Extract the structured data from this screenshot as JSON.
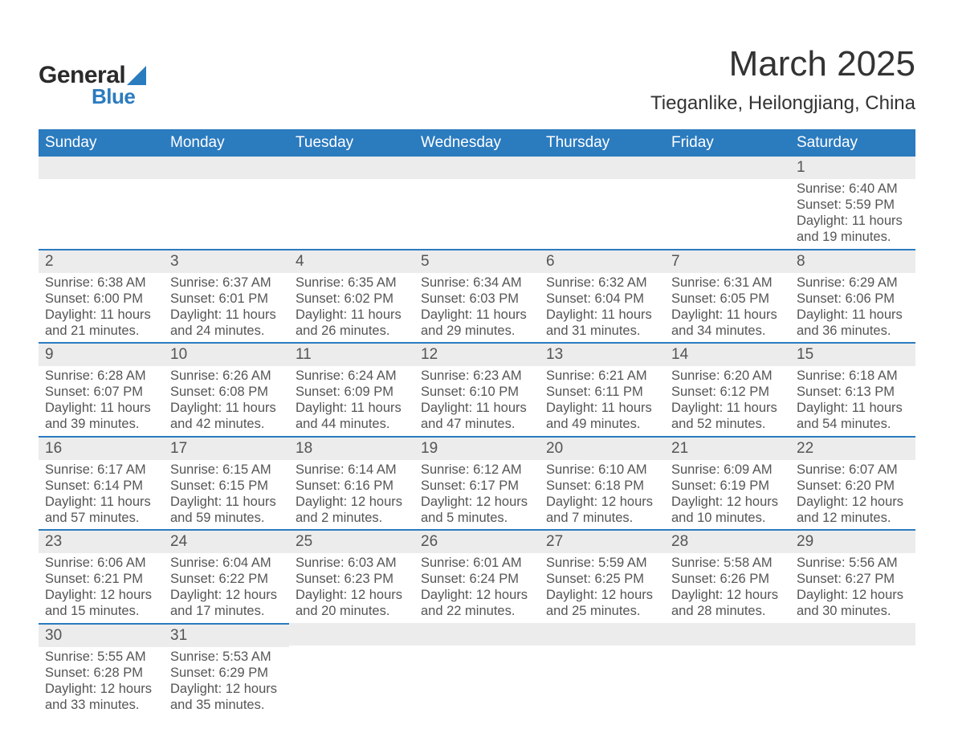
{
  "brand": {
    "general": "General",
    "blue": "Blue",
    "sail_color": "#2b7bbf"
  },
  "title": "March 2025",
  "location": "Tieganlike, Heilongjiang, China",
  "colors": {
    "header_bg": "#2b7bbf",
    "header_text": "#ffffff",
    "daybar_bg": "#ececec",
    "daybar_border": "#2b7bbf",
    "text": "#555555",
    "title_text": "#333333",
    "page_bg": "#ffffff"
  },
  "typography": {
    "title_fontsize": 44,
    "location_fontsize": 24,
    "dayheader_fontsize": 19,
    "daynum_fontsize": 19,
    "body_fontsize": 16.5
  },
  "day_headers": [
    "Sunday",
    "Monday",
    "Tuesday",
    "Wednesday",
    "Thursday",
    "Friday",
    "Saturday"
  ],
  "labels": {
    "sunrise": "Sunrise:",
    "sunset": "Sunset:",
    "daylight": "Daylight:"
  },
  "weeks": [
    [
      null,
      null,
      null,
      null,
      null,
      null,
      {
        "d": "1",
        "sr": "6:40 AM",
        "ss": "5:59 PM",
        "dl": "11 hours and 19 minutes."
      }
    ],
    [
      {
        "d": "2",
        "sr": "6:38 AM",
        "ss": "6:00 PM",
        "dl": "11 hours and 21 minutes."
      },
      {
        "d": "3",
        "sr": "6:37 AM",
        "ss": "6:01 PM",
        "dl": "11 hours and 24 minutes."
      },
      {
        "d": "4",
        "sr": "6:35 AM",
        "ss": "6:02 PM",
        "dl": "11 hours and 26 minutes."
      },
      {
        "d": "5",
        "sr": "6:34 AM",
        "ss": "6:03 PM",
        "dl": "11 hours and 29 minutes."
      },
      {
        "d": "6",
        "sr": "6:32 AM",
        "ss": "6:04 PM",
        "dl": "11 hours and 31 minutes."
      },
      {
        "d": "7",
        "sr": "6:31 AM",
        "ss": "6:05 PM",
        "dl": "11 hours and 34 minutes."
      },
      {
        "d": "8",
        "sr": "6:29 AM",
        "ss": "6:06 PM",
        "dl": "11 hours and 36 minutes."
      }
    ],
    [
      {
        "d": "9",
        "sr": "6:28 AM",
        "ss": "6:07 PM",
        "dl": "11 hours and 39 minutes."
      },
      {
        "d": "10",
        "sr": "6:26 AM",
        "ss": "6:08 PM",
        "dl": "11 hours and 42 minutes."
      },
      {
        "d": "11",
        "sr": "6:24 AM",
        "ss": "6:09 PM",
        "dl": "11 hours and 44 minutes."
      },
      {
        "d": "12",
        "sr": "6:23 AM",
        "ss": "6:10 PM",
        "dl": "11 hours and 47 minutes."
      },
      {
        "d": "13",
        "sr": "6:21 AM",
        "ss": "6:11 PM",
        "dl": "11 hours and 49 minutes."
      },
      {
        "d": "14",
        "sr": "6:20 AM",
        "ss": "6:12 PM",
        "dl": "11 hours and 52 minutes."
      },
      {
        "d": "15",
        "sr": "6:18 AM",
        "ss": "6:13 PM",
        "dl": "11 hours and 54 minutes."
      }
    ],
    [
      {
        "d": "16",
        "sr": "6:17 AM",
        "ss": "6:14 PM",
        "dl": "11 hours and 57 minutes."
      },
      {
        "d": "17",
        "sr": "6:15 AM",
        "ss": "6:15 PM",
        "dl": "11 hours and 59 minutes."
      },
      {
        "d": "18",
        "sr": "6:14 AM",
        "ss": "6:16 PM",
        "dl": "12 hours and 2 minutes."
      },
      {
        "d": "19",
        "sr": "6:12 AM",
        "ss": "6:17 PM",
        "dl": "12 hours and 5 minutes."
      },
      {
        "d": "20",
        "sr": "6:10 AM",
        "ss": "6:18 PM",
        "dl": "12 hours and 7 minutes."
      },
      {
        "d": "21",
        "sr": "6:09 AM",
        "ss": "6:19 PM",
        "dl": "12 hours and 10 minutes."
      },
      {
        "d": "22",
        "sr": "6:07 AM",
        "ss": "6:20 PM",
        "dl": "12 hours and 12 minutes."
      }
    ],
    [
      {
        "d": "23",
        "sr": "6:06 AM",
        "ss": "6:21 PM",
        "dl": "12 hours and 15 minutes."
      },
      {
        "d": "24",
        "sr": "6:04 AM",
        "ss": "6:22 PM",
        "dl": "12 hours and 17 minutes."
      },
      {
        "d": "25",
        "sr": "6:03 AM",
        "ss": "6:23 PM",
        "dl": "12 hours and 20 minutes."
      },
      {
        "d": "26",
        "sr": "6:01 AM",
        "ss": "6:24 PM",
        "dl": "12 hours and 22 minutes."
      },
      {
        "d": "27",
        "sr": "5:59 AM",
        "ss": "6:25 PM",
        "dl": "12 hours and 25 minutes."
      },
      {
        "d": "28",
        "sr": "5:58 AM",
        "ss": "6:26 PM",
        "dl": "12 hours and 28 minutes."
      },
      {
        "d": "29",
        "sr": "5:56 AM",
        "ss": "6:27 PM",
        "dl": "12 hours and 30 minutes."
      }
    ],
    [
      {
        "d": "30",
        "sr": "5:55 AM",
        "ss": "6:28 PM",
        "dl": "12 hours and 33 minutes."
      },
      {
        "d": "31",
        "sr": "5:53 AM",
        "ss": "6:29 PM",
        "dl": "12 hours and 35 minutes."
      },
      null,
      null,
      null,
      null,
      null
    ]
  ]
}
